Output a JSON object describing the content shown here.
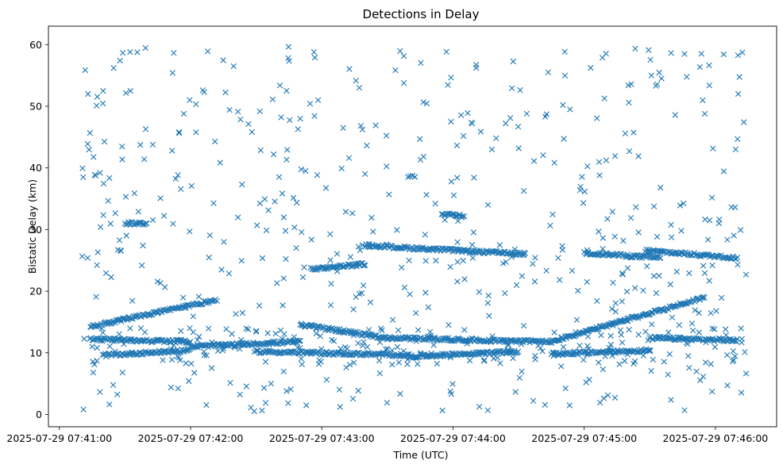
{
  "chart_data": {
    "type": "scatter",
    "title": "Detections in Delay",
    "xlabel": "Time (UTC)",
    "ylabel": "Bistatic Delay (km)",
    "x_ticks": [
      "2025-07-29 07:41:00",
      "2025-07-29 07:42:00",
      "2025-07-29 07:43:00",
      "2025-07-29 07:44:00",
      "2025-07-29 07:45:00",
      "2025-07-29 07:46:00"
    ],
    "y_ticks": [
      "0",
      "10",
      "20",
      "30",
      "40",
      "50",
      "60"
    ],
    "xlim": [
      "2025-07-29 07:40:55",
      "2025-07-29 07:46:28"
    ],
    "ylim": [
      -2,
      63
    ],
    "marker": "x",
    "color": "#1f77b4",
    "grid": false,
    "series": [
      {
        "name": "",
        "tracks": [
          {
            "t0": "2025-07-29 07:41:14",
            "t1": "2025-07-29 07:42:12",
            "y0": 14.2,
            "y1": 18.6
          },
          {
            "t0": "2025-07-29 07:43:30",
            "t1": "2025-07-29 07:44:45",
            "y0": 12.4,
            "y1": 11.8
          },
          {
            "t0": "2025-07-29 07:44:45",
            "t1": "2025-07-29 07:45:55",
            "y0": 11.8,
            "y1": 19.0
          },
          {
            "t0": "2025-07-29 07:42:50",
            "t1": "2025-07-29 07:43:30",
            "y0": 14.6,
            "y1": 12.4
          },
          {
            "t0": "2025-07-29 07:41:14",
            "t1": "2025-07-29 07:42:00",
            "y0": 12.2,
            "y1": 11.8
          },
          {
            "t0": "2025-07-29 07:42:00",
            "t1": "2025-07-29 07:42:50",
            "y0": 11.0,
            "y1": 11.8
          },
          {
            "t0": "2025-07-29 07:41:20",
            "t1": "2025-07-29 07:42:00",
            "y0": 9.6,
            "y1": 10.4
          },
          {
            "t0": "2025-07-29 07:42:30",
            "t1": "2025-07-29 07:43:40",
            "y0": 10.2,
            "y1": 9.6
          },
          {
            "t0": "2025-07-29 07:43:40",
            "t1": "2025-07-29 07:44:30",
            "y0": 9.4,
            "y1": 10.2
          },
          {
            "t0": "2025-07-29 07:44:45",
            "t1": "2025-07-29 07:45:30",
            "y0": 9.8,
            "y1": 10.4
          },
          {
            "t0": "2025-07-29 07:45:30",
            "t1": "2025-07-29 07:46:10",
            "y0": 12.4,
            "y1": 12.0
          },
          {
            "t0": "2025-07-29 07:42:55",
            "t1": "2025-07-29 07:43:20",
            "y0": 23.6,
            "y1": 24.4
          },
          {
            "t0": "2025-07-29 07:43:20",
            "t1": "2025-07-29 07:44:33",
            "y0": 27.4,
            "y1": 26.0
          },
          {
            "t0": "2025-07-29 07:45:00",
            "t1": "2025-07-29 07:45:35",
            "y0": 26.2,
            "y1": 25.4
          },
          {
            "t0": "2025-07-29 07:45:28",
            "t1": "2025-07-29 07:46:10",
            "y0": 26.6,
            "y1": 25.4
          },
          {
            "t0": "2025-07-29 07:41:30",
            "t1": "2025-07-29 07:41:40",
            "y0": 31.0,
            "y1": 31.0
          },
          {
            "t0": "2025-07-29 07:43:55",
            "t1": "2025-07-29 07:44:05",
            "y0": 32.6,
            "y1": 32.2
          }
        ],
        "random_points": {
          "count": 700,
          "t0": "2025-07-29 07:41:10",
          "t1": "2025-07-29 07:46:15",
          "y0": 0.5,
          "y1": 60.0
        }
      }
    ]
  }
}
